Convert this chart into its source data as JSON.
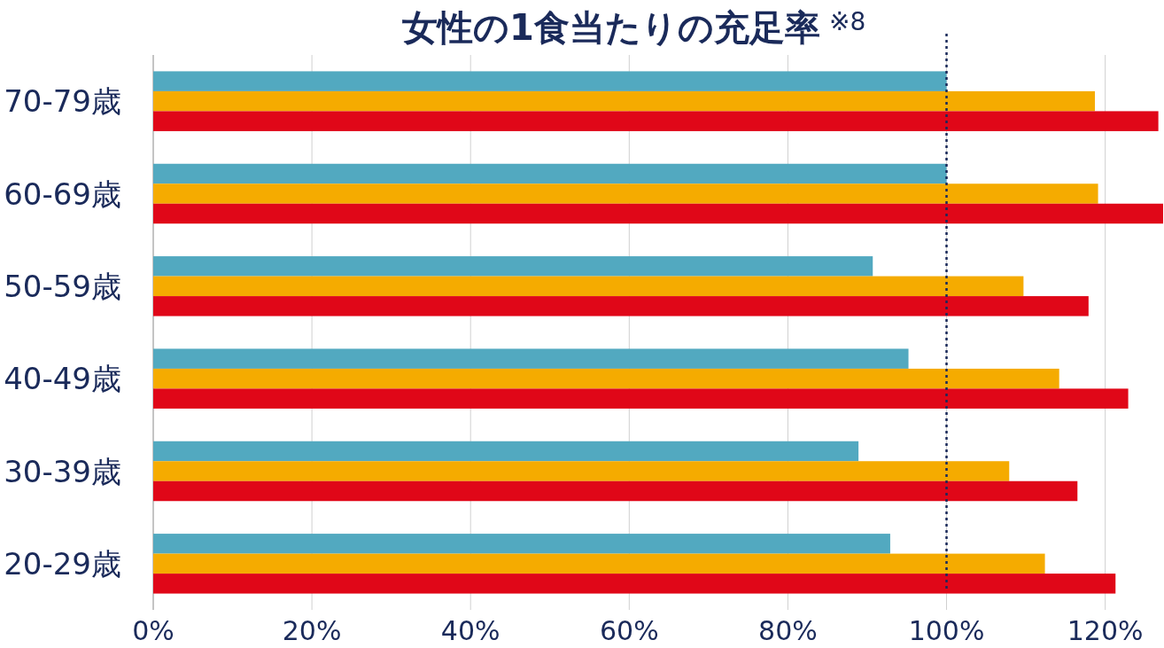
{
  "chart_data": {
    "type": "bar",
    "orientation": "horizontal",
    "title": "女性の1食当たりの充足率",
    "annotations": [
      "※8"
    ],
    "categories": [
      "70-79歳",
      "60-69歳",
      "50-59歳",
      "40-49歳",
      "30-39歳",
      "20-29歳"
    ],
    "series": [
      {
        "color": "#52a9c0",
        "values": [
          100,
          100,
          90.7,
          95.2,
          88.9,
          92.9
        ]
      },
      {
        "color": "#f5ab00",
        "values": [
          118.7,
          119.1,
          109.7,
          114.2,
          107.9,
          112.4
        ]
      },
      {
        "color": "#e00718",
        "values": [
          126.7,
          127.3,
          117.9,
          122.9,
          116.5,
          121.3
        ]
      }
    ],
    "xlim": [
      0,
      127.3
    ],
    "xticks": [
      {
        "value": 0,
        "label": "0%"
      },
      {
        "value": 20,
        "label": "20%"
      },
      {
        "value": 40,
        "label": "40%"
      },
      {
        "value": 60,
        "label": "60%"
      },
      {
        "value": 80,
        "label": "80%"
      },
      {
        "value": 100,
        "label": "100%"
      },
      {
        "value": 120,
        "label": "120%"
      }
    ],
    "ref_lines": [
      {
        "axis": "x",
        "value": 100,
        "color": "#1a2a5a",
        "line_style": "dotted"
      }
    ],
    "grid": "x"
  }
}
